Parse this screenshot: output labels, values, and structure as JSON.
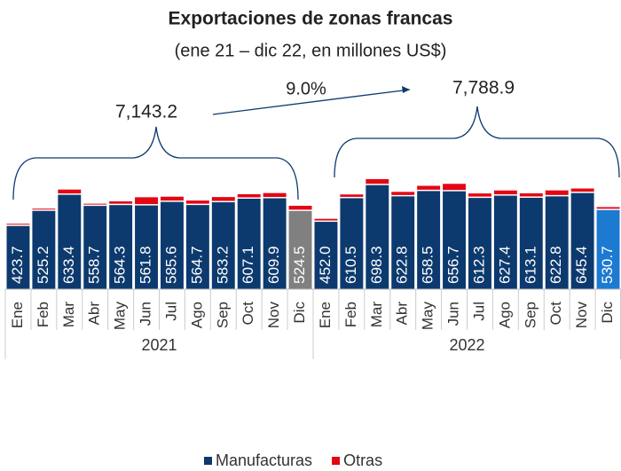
{
  "chart_data": {
    "type": "bar",
    "stacked": true,
    "title": "Exportaciones de zonas francas",
    "subtitle": "(ene 21 – dic 22, en millones US$)",
    "categories": [
      "Ene",
      "Feb",
      "Mar",
      "Abr",
      "May",
      "Jun",
      "Jul",
      "Ago",
      "Sep",
      "Oct",
      "Nov",
      "Dic",
      "Ene",
      "Feb",
      "Mar",
      "Abr",
      "May",
      "Jun",
      "Jul",
      "Ago",
      "Sep",
      "Oct",
      "Nov",
      "Dic"
    ],
    "groups": [
      "2021",
      "2022"
    ],
    "series": [
      {
        "name": "Manufacturas",
        "color": "#0d3a6e",
        "colors": [
          "#0d3a6e",
          "#0d3a6e",
          "#0d3a6e",
          "#0d3a6e",
          "#0d3a6e",
          "#0d3a6e",
          "#0d3a6e",
          "#0d3a6e",
          "#0d3a6e",
          "#0d3a6e",
          "#0d3a6e",
          "#808080",
          "#0d3a6e",
          "#0d3a6e",
          "#0d3a6e",
          "#0d3a6e",
          "#0d3a6e",
          "#0d3a6e",
          "#0d3a6e",
          "#0d3a6e",
          "#0d3a6e",
          "#0d3a6e",
          "#0d3a6e",
          "#1c7ad1"
        ],
        "values": [
          423.7,
          525.2,
          633.4,
          558.7,
          564.3,
          561.8,
          585.6,
          564.7,
          583.2,
          607.1,
          609.9,
          524.5,
          452.0,
          610.5,
          698.3,
          622.8,
          658.5,
          656.7,
          612.3,
          627.4,
          613.1,
          622.8,
          645.4,
          530.7
        ],
        "value_labels": [
          "423.7",
          "525.2",
          "633.4",
          "558.7",
          "564.3",
          "561.8",
          "585.6",
          "564.7",
          "583.2",
          "607.1",
          "609.9",
          "524.5",
          "452.0",
          "610.5",
          "698.3",
          "622.8",
          "658.5",
          "656.7",
          "612.3",
          "627.4",
          "613.1",
          "622.8",
          "645.4",
          "530.7"
        ]
      },
      {
        "name": "Otras",
        "color": "#e30613",
        "values": [
          15,
          15,
          35,
          15,
          25,
          55,
          35,
          30,
          35,
          30,
          35,
          35,
          20,
          25,
          40,
          30,
          35,
          50,
          30,
          35,
          30,
          40,
          30,
          20
        ]
      }
    ],
    "ylim": [
      0,
      750
    ],
    "annotations": [
      "7,143.2",
      "7,788.9",
      "9.0%"
    ]
  }
}
